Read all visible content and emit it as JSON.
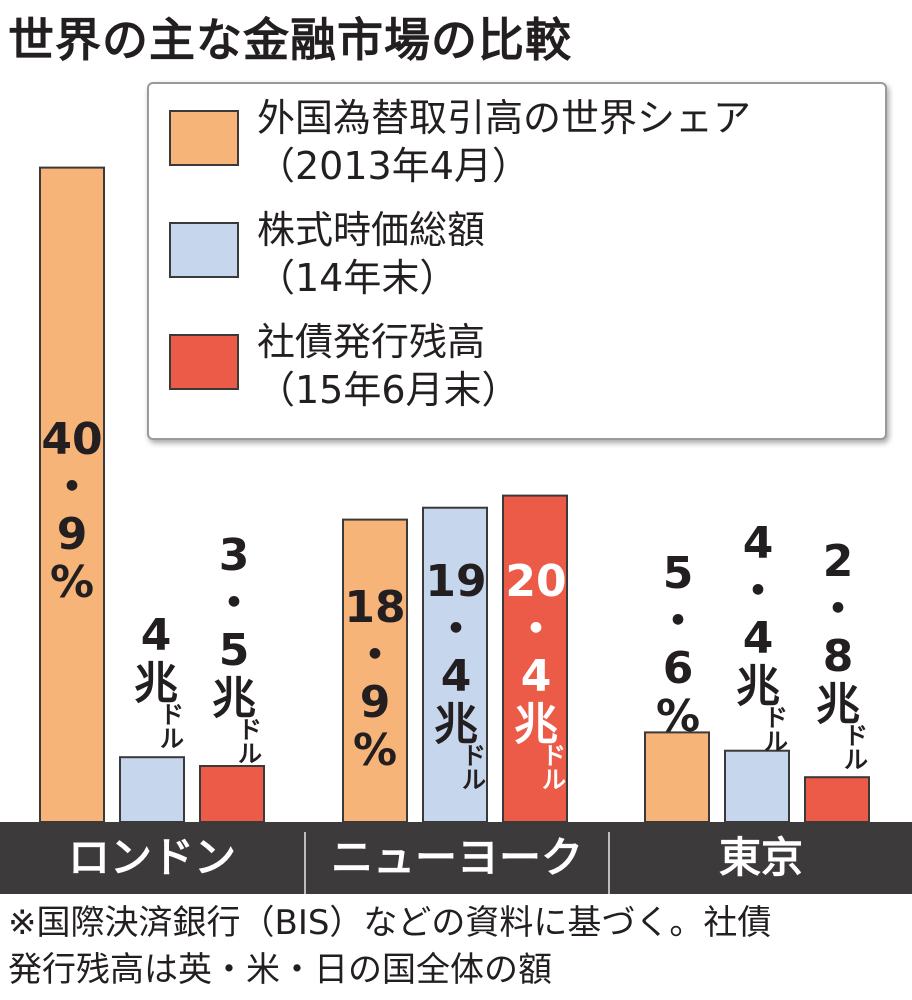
{
  "title": "世界の主な金融市場の比較",
  "legend": [
    {
      "label_line1": "外国為替取引高の世界シェア",
      "label_line2": "（2013年4月）",
      "color": "#f7b478"
    },
    {
      "label_line1": "株式時価総額",
      "label_line2": "（14年末）",
      "color": "#c6d6ec"
    },
    {
      "label_line1": "社債発行残高",
      "label_line2": "（15年6月末）",
      "color": "#ec5b48"
    }
  ],
  "categories": [
    "ロンドン",
    "ニューヨーク",
    "東京"
  ],
  "labels": {
    "london_fx": [
      "40",
      "・",
      "9",
      "%"
    ],
    "london_stock": [
      "4",
      "兆",
      "ド",
      "ル"
    ],
    "london_bond": [
      "3",
      "・",
      "5",
      "兆",
      "ド",
      "ル"
    ],
    "ny_fx": [
      "18",
      "・",
      "9",
      "%"
    ],
    "ny_stock": [
      "19",
      "・",
      "4",
      "兆",
      "ド",
      "ル"
    ],
    "ny_bond": [
      "20",
      "・",
      "4",
      "兆",
      "ド",
      "ル"
    ],
    "tokyo_fx": [
      "5",
      "・",
      "6",
      "%"
    ],
    "tokyo_stock": [
      "4",
      "・",
      "4",
      "兆",
      "ド",
      "ル"
    ],
    "tokyo_bond": [
      "2",
      "・",
      "8",
      "兆",
      "ド",
      "ル"
    ]
  },
  "note": {
    "line1": "※国際決済銀行（BIS）などの資料に基づく。社債",
    "line2": "発行残高は英・米・日の国全体の額"
  },
  "chart_data": {
    "type": "bar",
    "categories": [
      "ロンドン",
      "ニューヨーク",
      "東京"
    ],
    "series": [
      {
        "name": "外国為替取引高の世界シェア（2013年4月）",
        "unit": "%",
        "values": [
          40.9,
          18.9,
          5.6
        ],
        "color": "#f7b478"
      },
      {
        "name": "株式時価総額（14年末）",
        "unit": "兆ドル",
        "values": [
          4,
          19.4,
          4.4
        ],
        "color": "#c6d6ec"
      },
      {
        "name": "社債発行残高（15年6月末）",
        "unit": "兆ドル",
        "values": [
          3.5,
          20.4,
          2.8
        ],
        "color": "#ec5b48"
      }
    ],
    "title": "世界の主な金融市場の比較",
    "legend_position": "top-right",
    "grid": false
  }
}
